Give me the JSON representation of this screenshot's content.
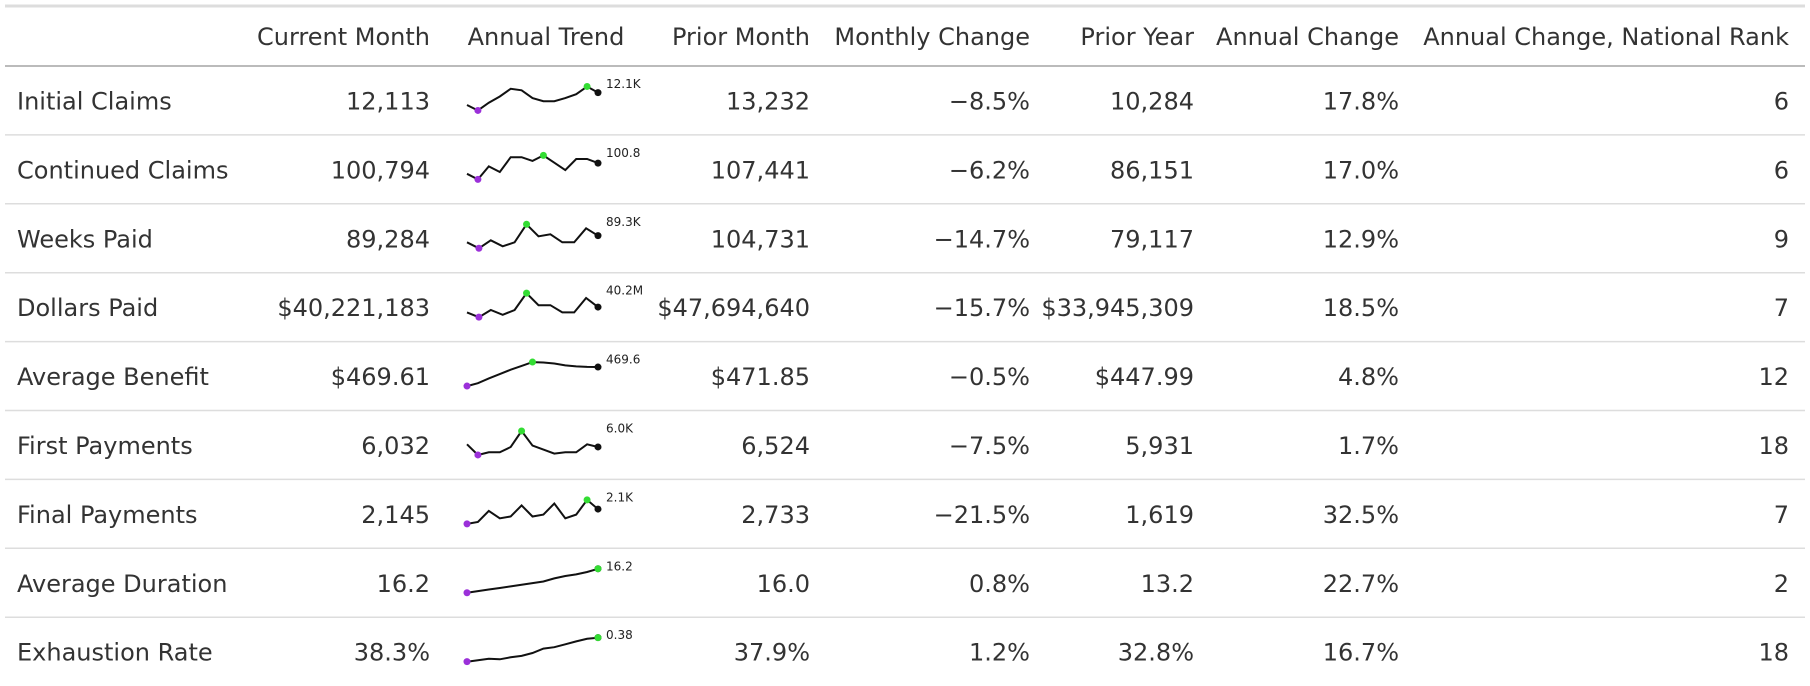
{
  "table": {
    "columns": [
      "Current Month",
      "Annual Trend",
      "Prior Month",
      "Monthly Change",
      "Prior Year",
      "Annual Change",
      "Annual Change, National Rank"
    ],
    "rows": [
      {
        "label": "Initial Claims",
        "current": "12,113",
        "trend": {
          "values": [
            10.5,
            9.8,
            10.8,
            11.6,
            12.6,
            12.4,
            11.4,
            11.0,
            11.0,
            11.4,
            11.9,
            12.9,
            12.1
          ],
          "label": "12.1K"
        },
        "prior_month": "13,232",
        "monthly_change": "−8.5%",
        "prior_year": "10,284",
        "annual_change": "17.8%",
        "rank": 6
      },
      {
        "label": "Continued Claims",
        "current": "100,794",
        "trend": {
          "values": [
            95,
            92,
            99,
            96,
            104,
            104,
            102,
            105,
            101,
            97,
            103,
            103,
            100.8
          ],
          "label": "100.8"
        },
        "prior_month": "107,441",
        "monthly_change": "−6.2%",
        "prior_year": "86,151",
        "annual_change": "17.0%",
        "rank": 6
      },
      {
        "label": "Weeks Paid",
        "current": "89,284",
        "trend": {
          "values": [
            86,
            83,
            87,
            84,
            86,
            95,
            89,
            90,
            86,
            86,
            93,
            89.3
          ],
          "label": "89.3K"
        },
        "prior_month": "104,731",
        "monthly_change": "−14.7%",
        "prior_year": "79,117",
        "annual_change": "12.9%",
        "rank": 9
      },
      {
        "label": "Dollars Paid",
        "current": "$40,221,183",
        "trend": {
          "values": [
            38,
            36,
            39,
            37,
            39,
            46,
            41,
            41,
            38,
            38,
            44,
            40.2
          ],
          "label": "40.2M"
        },
        "prior_month": "$47,694,640",
        "monthly_change": "−15.7%",
        "prior_year": "$33,945,309",
        "annual_change": "18.5%",
        "rank": 7
      },
      {
        "label": "Average Benefit",
        "current": "$469.61",
        "trend": {
          "values": [
            430,
            436,
            446,
            455,
            464,
            472,
            480,
            479,
            477,
            473,
            471,
            470,
            469.6
          ],
          "label": "469.6"
        },
        "prior_month": "$471.85",
        "monthly_change": "−0.5%",
        "prior_year": "$447.99",
        "annual_change": "4.8%",
        "rank": 12
      },
      {
        "label": "First Payments",
        "current": "6,032",
        "trend": {
          "values": [
            6.2,
            5.4,
            5.6,
            5.6,
            6.0,
            7.2,
            6.1,
            5.8,
            5.5,
            5.6,
            5.6,
            6.2,
            6.0
          ],
          "label": "6.0K"
        },
        "prior_month": "6,524",
        "monthly_change": "−7.5%",
        "prior_year": "5,931",
        "annual_change": "1.7%",
        "rank": 18
      },
      {
        "label": "Final Payments",
        "current": "2,145",
        "trend": {
          "values": [
            1.7,
            1.75,
            2.05,
            1.85,
            1.9,
            2.2,
            1.9,
            1.95,
            2.25,
            1.85,
            1.95,
            2.35,
            2.1
          ],
          "label": "2.1K"
        },
        "prior_month": "2,733",
        "monthly_change": "−21.5%",
        "prior_year": "1,619",
        "annual_change": "32.5%",
        "rank": 7
      },
      {
        "label": "Average Duration",
        "current": "16.2",
        "trend": {
          "values": [
            13.2,
            13.4,
            13.6,
            13.8,
            14.0,
            14.2,
            14.4,
            14.6,
            15.0,
            15.3,
            15.5,
            15.8,
            16.2
          ],
          "label": "16.2"
        },
        "prior_month": "16.0",
        "monthly_change": "0.8%",
        "prior_year": "13.2",
        "annual_change": "22.7%",
        "rank": 2
      },
      {
        "label": "Exhaustion Rate",
        "current": "38.3%",
        "trend": {
          "values": [
            30,
            30.5,
            31,
            30.8,
            31.5,
            32,
            33,
            34.5,
            35,
            36,
            37,
            37.9,
            38.3
          ],
          "label": "0.38"
        },
        "prior_month": "37.9%",
        "monthly_change": "1.2%",
        "prior_year": "32.8%",
        "annual_change": "16.7%",
        "rank": 18
      }
    ]
  }
}
